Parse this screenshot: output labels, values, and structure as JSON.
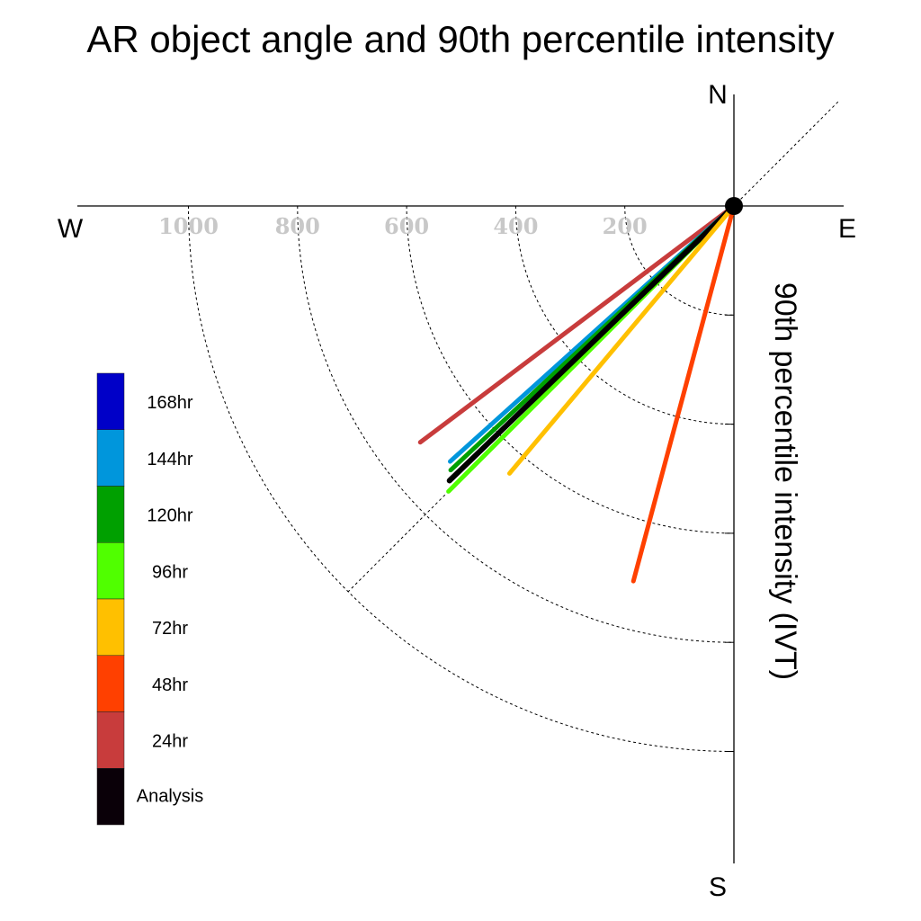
{
  "chart_data": {
    "type": "polar-vector",
    "title": "AR object angle and 90th percentile intensity",
    "ylabel": "90th percentile intensity (IVT)",
    "compass": {
      "north": "N",
      "south": "S",
      "east": "E",
      "west": "W"
    },
    "rings": [
      200,
      400,
      600,
      800,
      1000
    ],
    "ring_labels": [
      "200",
      "400",
      "600",
      "800",
      "1000"
    ],
    "rmax": 1200,
    "series": [
      {
        "name": "24hr",
        "angle_deg_from_north": 233,
        "intensity": 720,
        "color": "#c83c3c"
      },
      {
        "name": "144hr",
        "angle_deg_from_north": 228,
        "intensity": 700,
        "color": "#0096dc"
      },
      {
        "name": "120hr",
        "angle_deg_from_north": 227,
        "intensity": 710,
        "color": "#00a000"
      },
      {
        "name": "96hr",
        "angle_deg_from_north": 225,
        "intensity": 740,
        "color": "#50ff00"
      },
      {
        "name": "Analysis",
        "angle_deg_from_north": 226,
        "intensity": 725,
        "color": "#000000"
      },
      {
        "name": "72hr",
        "angle_deg_from_north": 220,
        "intensity": 640,
        "color": "#ffc000"
      },
      {
        "name": "48hr",
        "angle_deg_from_north": 195,
        "intensity": 712,
        "color": "#ff4000"
      }
    ],
    "legend": [
      {
        "label": "168hr",
        "color": "#0000c8"
      },
      {
        "label": "144hr",
        "color": "#0096dc"
      },
      {
        "label": "120hr",
        "color": "#00a000"
      },
      {
        "label": "96hr",
        "color": "#50ff00"
      },
      {
        "label": "72hr",
        "color": "#ffc000"
      },
      {
        "label": "48hr",
        "color": "#ff4000"
      },
      {
        "label": "24hr",
        "color": "#c83c3c"
      },
      {
        "label": "Analysis",
        "color": "#0a0008"
      }
    ]
  }
}
